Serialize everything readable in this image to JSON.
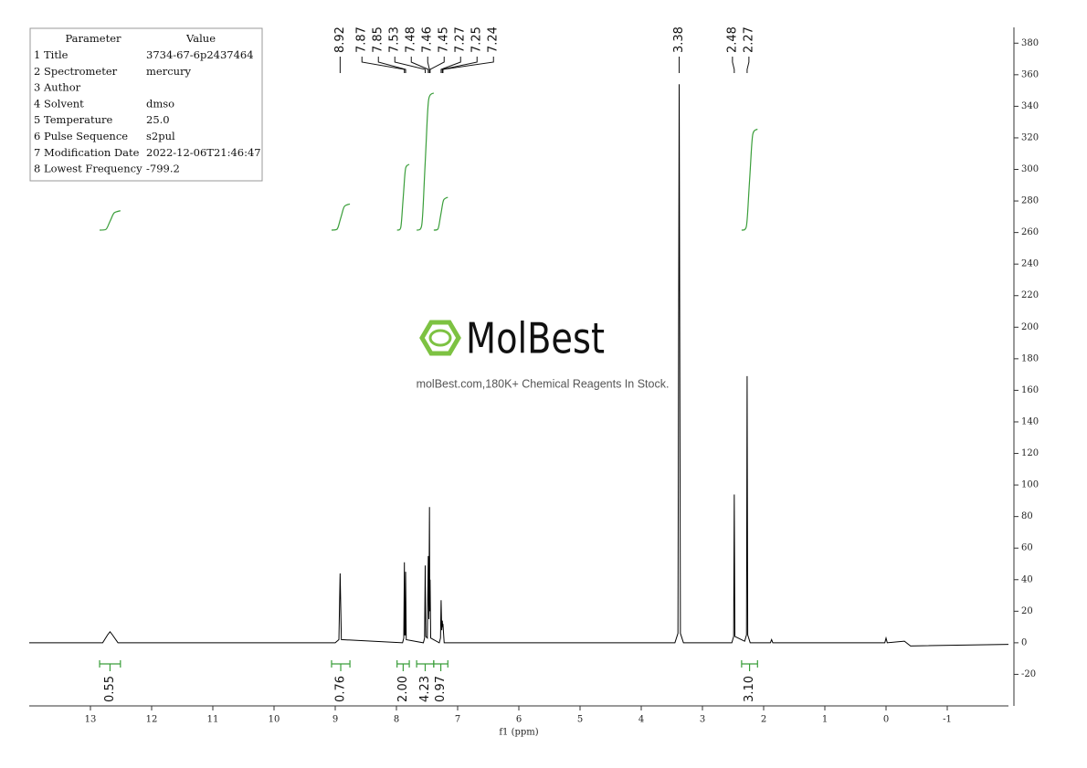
{
  "chart_data": {
    "type": "line",
    "x_label": "f1 (ppm)",
    "xlim": [
      14,
      -2
    ],
    "ylim": [
      -40,
      390
    ],
    "xticks": [
      13,
      12,
      11,
      10,
      9,
      8,
      7,
      6,
      5,
      4,
      3,
      2,
      1,
      0,
      -1
    ],
    "yticks": [
      -20,
      0,
      20,
      40,
      60,
      80,
      100,
      120,
      140,
      160,
      180,
      200,
      220,
      240,
      260,
      280,
      300,
      320,
      340,
      360,
      380
    ],
    "series": [
      {
        "color": "#000000",
        "x": [
          14,
          12.8,
          12.72,
          12.68,
          12.64,
          12.55,
          9.0,
          8.94,
          8.92,
          8.9,
          7.9,
          7.88,
          7.87,
          7.865,
          7.855,
          7.85,
          7.84,
          7.56,
          7.54,
          7.53,
          7.52,
          7.495,
          7.48,
          7.47,
          7.46,
          7.455,
          7.45,
          7.44,
          7.3,
          7.28,
          7.27,
          7.26,
          7.25,
          7.245,
          7.24,
          7.22,
          3.45,
          3.4,
          3.38,
          3.36,
          3.31,
          2.52,
          2.49,
          2.48,
          2.47,
          2.31,
          2.28,
          2.27,
          2.26,
          2.22,
          1.89,
          1.87,
          1.85,
          0.02,
          0,
          -0.02,
          -0.3,
          -0.4,
          -2
        ],
        "values": [
          0,
          0,
          5,
          7,
          5,
          0,
          0,
          2,
          44,
          2,
          0,
          3,
          51,
          5,
          5,
          45,
          2,
          0,
          3,
          49,
          4,
          3,
          55,
          15,
          86,
          20,
          40,
          3,
          0,
          3,
          27,
          8,
          14,
          10,
          12,
          0,
          0,
          6,
          354,
          6,
          0,
          0,
          4,
          94,
          4,
          1,
          5,
          169,
          5,
          0,
          0,
          2,
          0,
          0,
          3,
          0,
          1,
          -2,
          -1
        ]
      }
    ],
    "peak_labels": [
      8.92,
      7.87,
      7.85,
      7.53,
      7.48,
      7.46,
      7.45,
      7.27,
      7.25,
      7.24,
      3.38,
      2.48,
      2.27
    ],
    "integrals": {
      "color": "#3a9e3a",
      "ranges": [
        [
          12.85,
          12.51
        ],
        [
          9.06,
          8.76
        ],
        [
          7.99,
          7.79
        ],
        [
          7.67,
          7.39
        ],
        [
          7.39,
          7.16
        ],
        [
          2.36,
          2.1
        ]
      ],
      "values": [
        0.55,
        0.76,
        2.0,
        4.23,
        0.97,
        3.1
      ],
      "value_labels": [
        "0.55",
        "0.76",
        "2.00",
        "4.23",
        "0.97",
        "3.10"
      ]
    }
  },
  "parameters": {
    "header": [
      "Parameter",
      "Value"
    ],
    "rows": [
      [
        "1 Title",
        "3734-67-6p2437464"
      ],
      [
        "2 Spectrometer",
        "mercury"
      ],
      [
        "3 Author"
      ],
      [
        "4 Solvent",
        "dmso"
      ],
      [
        "5 Temperature",
        "25.0"
      ],
      [
        "6 Pulse Sequence",
        "s2pul"
      ],
      [
        "7 Modification Date",
        "2022-12-06T21:46:47"
      ],
      [
        "8 Lowest Frequency",
        "-799.2"
      ]
    ]
  },
  "watermark": {
    "brand": "MolBest",
    "tagline": "molBest.com,180K+ Chemical Reagents In Stock."
  }
}
